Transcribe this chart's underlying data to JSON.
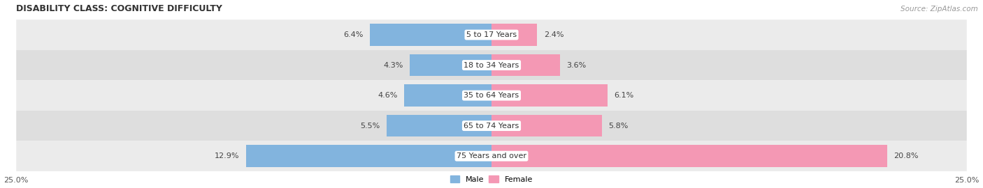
{
  "title": "DISABILITY CLASS: COGNITIVE DIFFICULTY",
  "source": "Source: ZipAtlas.com",
  "categories": [
    "5 to 17 Years",
    "18 to 34 Years",
    "35 to 64 Years",
    "65 to 74 Years",
    "75 Years and over"
  ],
  "male_values": [
    6.4,
    4.3,
    4.6,
    5.5,
    12.9
  ],
  "female_values": [
    2.4,
    3.6,
    6.1,
    5.8,
    20.8
  ],
  "x_max": 25.0,
  "male_color": "#82b4de",
  "female_color": "#f498b4",
  "row_colors": [
    "#ebebeb",
    "#dedede"
  ],
  "title_fontsize": 9,
  "label_fontsize": 8,
  "tick_fontsize": 8,
  "legend_fontsize": 8,
  "source_fontsize": 7.5
}
